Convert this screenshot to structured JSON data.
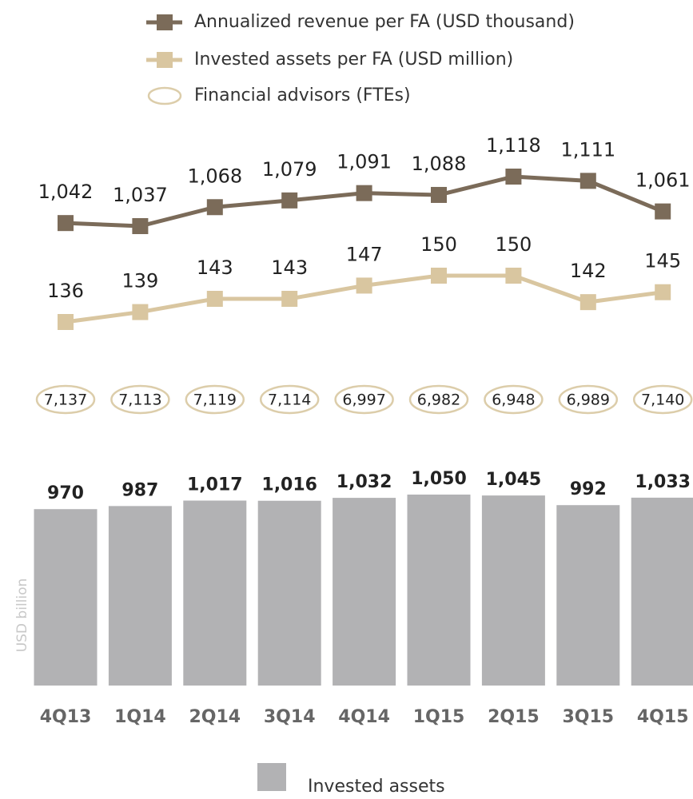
{
  "chart_data": {
    "type": "combo",
    "categories": [
      "4Q13",
      "1Q14",
      "2Q14",
      "3Q14",
      "4Q14",
      "1Q15",
      "2Q15",
      "3Q15",
      "4Q15"
    ],
    "y_label": "USD billion",
    "series": [
      {
        "name": "Annualized revenue per FA (USD thousand)",
        "type": "line",
        "color": "#7b6b59",
        "values": [
          1042,
          1037,
          1068,
          1079,
          1091,
          1088,
          1118,
          1111,
          1061
        ],
        "value_labels": [
          "1,042",
          "1,037",
          "1,068",
          "1,079",
          "1,091",
          "1,088",
          "1,118",
          "1,111",
          "1,061"
        ]
      },
      {
        "name": "Invested assets per FA (USD million)",
        "type": "line",
        "color": "#d9c6a0",
        "values": [
          136,
          139,
          143,
          143,
          147,
          150,
          150,
          142,
          145
        ]
      },
      {
        "name": "Financial advisors (FTEs)",
        "type": "ellipse",
        "color": "#dccdaa",
        "values": [
          7137,
          7113,
          7119,
          7114,
          6997,
          6982,
          6948,
          6989,
          7140
        ],
        "value_labels": [
          "7,137",
          "7,113",
          "7,119",
          "7,114",
          "6,997",
          "6,982",
          "6,948",
          "6,989",
          "7,140"
        ]
      },
      {
        "name": "Invested assets",
        "type": "bar",
        "color": "#b2b2b4",
        "values": [
          970,
          987,
          1017,
          1016,
          1032,
          1050,
          1045,
          992,
          1033
        ],
        "value_labels": [
          "970",
          "987",
          "1,017",
          "1,016",
          "1,032",
          "1,050",
          "1,045",
          "992",
          "1,033"
        ]
      }
    ]
  }
}
